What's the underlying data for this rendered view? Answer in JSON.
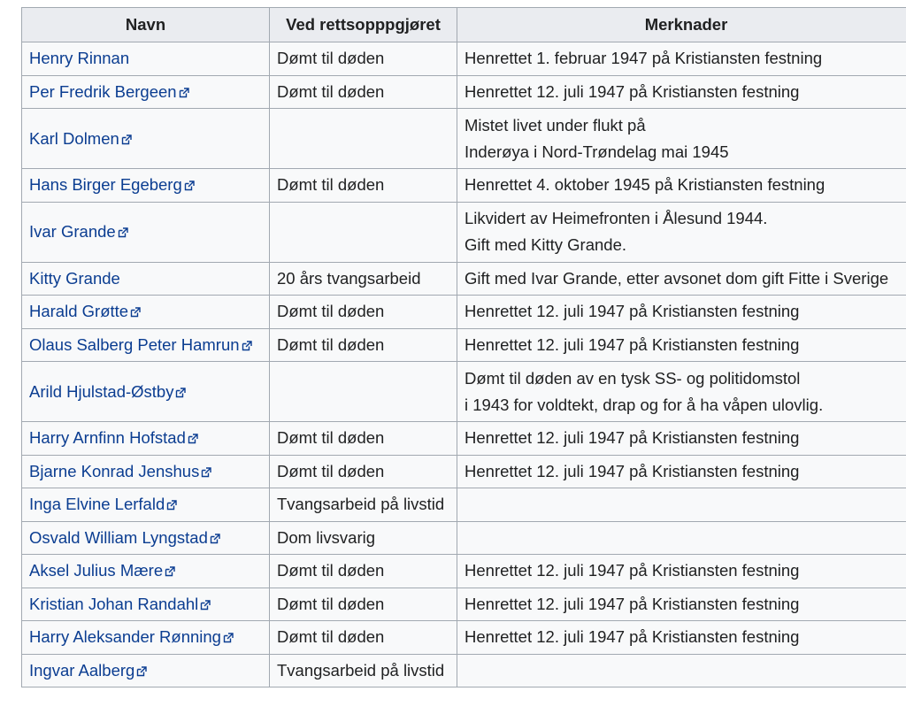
{
  "table": {
    "headers": {
      "name": "Navn",
      "verdict": "Ved rettsopppgjøret",
      "notes": "Merknader"
    },
    "rows": [
      {
        "name": "Henry Rinnan",
        "external": false,
        "verdict": "Dømt til døden",
        "notes": [
          "Henrettet 1. februar 1947 på Kristiansten festning"
        ]
      },
      {
        "name": "Per Fredrik Bergeen",
        "external": true,
        "verdict": "Dømt til døden",
        "notes": [
          "Henrettet 12. juli 1947 på Kristiansten festning"
        ]
      },
      {
        "name": "Karl Dolmen",
        "external": true,
        "verdict": "",
        "notes": [
          "Mistet livet under flukt på",
          "Inderøya i Nord-Trøndelag mai 1945"
        ]
      },
      {
        "name": "Hans Birger Egeberg",
        "external": true,
        "verdict": "Dømt til døden",
        "notes": [
          "Henrettet 4. oktober 1945 på Kristiansten festning"
        ]
      },
      {
        "name": "Ivar Grande",
        "external": true,
        "verdict": "",
        "notes": [
          "Likvidert av Heimefronten i Ålesund 1944.",
          "Gift med Kitty Grande."
        ]
      },
      {
        "name": "Kitty Grande",
        "external": false,
        "verdict": "20 års tvangsarbeid",
        "notes": [
          "Gift med Ivar Grande, etter avsonet dom gift Fitte i Sverige"
        ]
      },
      {
        "name": "Harald Grøtte",
        "external": true,
        "verdict": "Dømt til døden",
        "notes": [
          "Henrettet 12. juli 1947 på Kristiansten festning"
        ]
      },
      {
        "name": "Olaus Salberg Peter Hamrun",
        "external": true,
        "verdict": "Dømt til døden",
        "notes": [
          "Henrettet 12. juli 1947 på Kristiansten festning"
        ]
      },
      {
        "name": "Arild Hjulstad-Østby",
        "external": true,
        "verdict": "",
        "notes": [
          "Dømt til døden av en tysk SS- og politidomstol",
          "i 1943 for voldtekt, drap og for å ha våpen ulovlig."
        ]
      },
      {
        "name": "Harry Arnfinn Hofstad",
        "external": true,
        "verdict": "Dømt til døden",
        "notes": [
          "Henrettet 12. juli 1947 på Kristiansten festning"
        ]
      },
      {
        "name": "Bjarne Konrad Jenshus",
        "external": true,
        "verdict": "Dømt til døden",
        "notes": [
          "Henrettet 12. juli 1947 på Kristiansten festning"
        ]
      },
      {
        "name": "Inga Elvine Lerfald",
        "external": true,
        "verdict": "Tvangsarbeid på livstid",
        "notes": []
      },
      {
        "name": "Osvald William Lyngstad",
        "external": true,
        "verdict": "Dom livsvarig",
        "notes": []
      },
      {
        "name": "Aksel Julius Mære",
        "external": true,
        "verdict": "Dømt til døden",
        "notes": [
          "Henrettet 12. juli 1947 på Kristiansten festning"
        ]
      },
      {
        "name": "Kristian Johan Randahl",
        "external": true,
        "verdict": "Dømt til døden",
        "notes": [
          "Henrettet 12. juli 1947 på Kristiansten festning"
        ]
      },
      {
        "name": "Harry Aleksander Rønning",
        "external": true,
        "verdict": "Dømt til døden",
        "notes": [
          "Henrettet 12. juli 1947 på Kristiansten festning"
        ]
      },
      {
        "name": "Ingvar Aalberg",
        "external": true,
        "verdict": "Tvangsarbeid på livstid",
        "notes": []
      }
    ]
  },
  "icons": {
    "external_link": "external-link-icon"
  },
  "colors": {
    "link": "#0b3d91",
    "header_bg": "#eaecf0",
    "cell_bg": "#f8f9fa",
    "border": "#a2a9b1"
  }
}
